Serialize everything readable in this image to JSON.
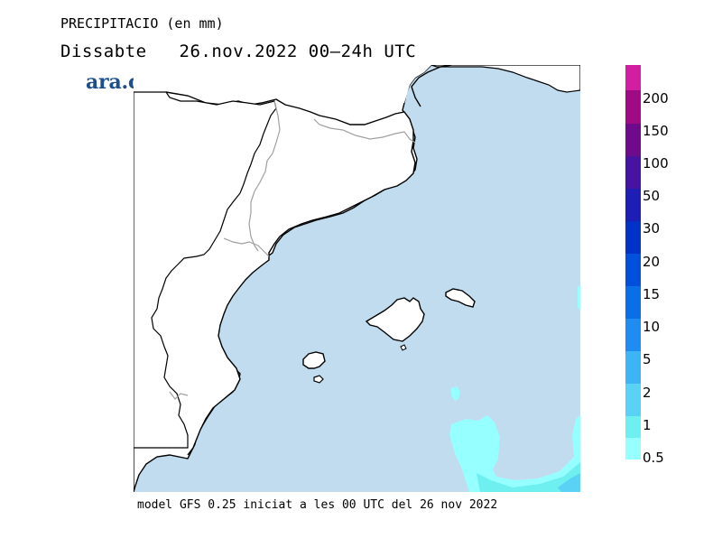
{
  "header": {
    "title": "PRECIPITACIO (en mm)",
    "day": "Dissabte",
    "date_range": "26.nov.2022 00—24h UTC"
  },
  "logo": {
    "text": "ara.cat",
    "color": "#1d4f8c"
  },
  "footer": {
    "text": "model GFS 0.25 iniciat a les 00 UTC del 26 nov 2022"
  },
  "legend": {
    "levels": [
      {
        "label": "0.5",
        "color": "#96ffff"
      },
      {
        "label": "1",
        "color": "#6ef0f0"
      },
      {
        "label": "2",
        "color": "#5ad2f5"
      },
      {
        "label": "5",
        "color": "#3cb4f5"
      },
      {
        "label": "10",
        "color": "#1e8cf0"
      },
      {
        "label": "15",
        "color": "#0a6ee6"
      },
      {
        "label": "20",
        "color": "#0050dc"
      },
      {
        "label": "30",
        "color": "#0032c8"
      },
      {
        "label": "50",
        "color": "#1e1eb4"
      },
      {
        "label": "100",
        "color": "#4614a0"
      },
      {
        "label": "150",
        "color": "#6e0a8c"
      },
      {
        "label": "200",
        "color": "#a00a82"
      }
    ],
    "top_color": "#d21ea0"
  },
  "map": {
    "sea_color": "#c0dcee",
    "land_color": "#ffffff",
    "coast_color": "#000000",
    "border_color": "#a0a0a0",
    "light_precip_color": "#96ffff",
    "mid_precip_color": "#6ef0f0",
    "heavy_precip_color": "#5ad2f5"
  }
}
